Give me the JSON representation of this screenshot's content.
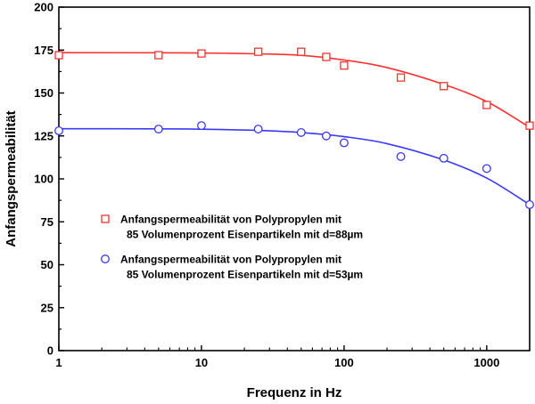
{
  "chart_data": {
    "type": "scatter",
    "title": "",
    "xlabel": "Frequenz in Hz",
    "ylabel": "Anfangspermeabilität",
    "xscale": "log",
    "xlim": [
      1,
      2000
    ],
    "ylim": [
      0,
      200
    ],
    "x_ticks": [
      1,
      10,
      100,
      1000
    ],
    "x_tick_labels": [
      "1",
      "10",
      "100",
      "1000"
    ],
    "y_ticks": [
      0,
      25,
      50,
      75,
      100,
      125,
      150,
      175,
      200
    ],
    "y_tick_labels": [
      "0",
      "25",
      "50",
      "75",
      "100",
      "125",
      "150",
      "175",
      "200"
    ],
    "grid": false,
    "legend_position": "center-left",
    "series": [
      {
        "name": "Anfangspermeabilität von Polypropylen mit 85 Volumenprozent Eisenpartikeln mit d=88µm",
        "legend_line1": "Anfangspermeabilität von Polypropylen mit",
        "legend_line2": "85 Volumenprozent Eisenpartikeln mit d=88µm",
        "color": "#ff3030",
        "marker": "square",
        "x": [
          1,
          5,
          10,
          25,
          50,
          75,
          100,
          250,
          500,
          1000,
          2000
        ],
        "y": [
          172,
          172,
          173,
          174,
          174,
          171,
          166,
          159,
          154,
          143,
          131
        ],
        "fit_x": [
          1,
          5,
          10,
          25,
          50,
          100,
          200,
          500,
          1000,
          2000
        ],
        "fit_y": [
          173.5,
          173.4,
          173.3,
          172.8,
          171.9,
          169.2,
          164.8,
          155,
          145,
          130
        ]
      },
      {
        "name": "Anfangspermeabilität von Polypropylen mit 85 Volumenprozent Eisenpartikeln mit d=53µm",
        "legend_line1": "Anfangspermeabilität von Polypropylen mit",
        "legend_line2": "85 Volumenprozent Eisenpartikeln mit d=53µm",
        "color": "#3a3aff",
        "marker": "circle",
        "x": [
          1,
          5,
          10,
          25,
          50,
          75,
          100,
          250,
          500,
          1000,
          2000
        ],
        "y": [
          128,
          129,
          131,
          129,
          127,
          125,
          121,
          113,
          112,
          106,
          85
        ],
        "fit_x": [
          1,
          5,
          10,
          25,
          50,
          100,
          200,
          500,
          1000,
          2000
        ],
        "fit_y": [
          129.2,
          129.1,
          128.9,
          128.2,
          127,
          124.6,
          120.5,
          111,
          100.5,
          85
        ]
      }
    ]
  }
}
